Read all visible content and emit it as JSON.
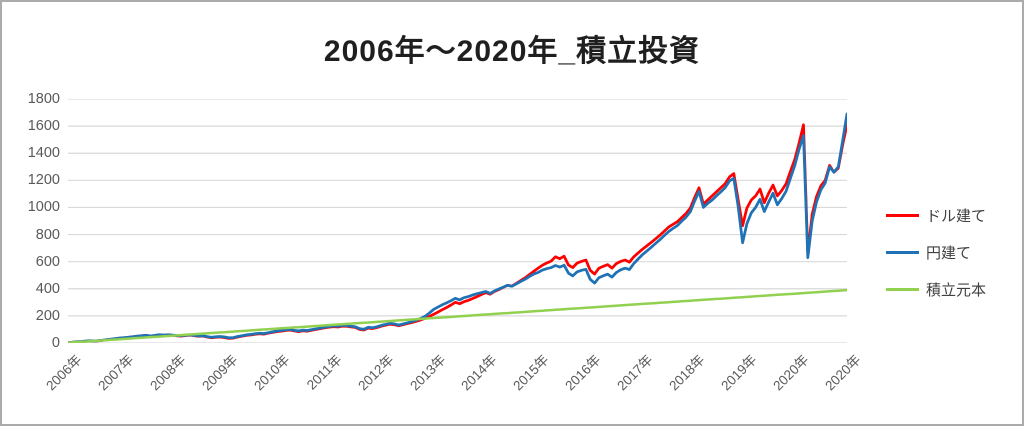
{
  "window": {
    "background": "#ffffff",
    "border_color": "#ababab"
  },
  "colors": {
    "grid": "#d9d9d9",
    "axis_text": "#595959",
    "title_text": "#1f1f1f",
    "legend_text": "#404040"
  },
  "chart_data": {
    "type": "line",
    "title": "2006年～2020年_積立投資",
    "xlabel": "",
    "ylabel": "",
    "ylim": [
      0,
      1800
    ],
    "y_ticks": [
      0,
      200,
      400,
      600,
      800,
      1000,
      1200,
      1400,
      1600,
      1800
    ],
    "grid": "horizontal",
    "legend_position": "right",
    "x_tick_labels": [
      "2006年",
      "2007年",
      "2008年",
      "2009年",
      "2010年",
      "2011年",
      "2012年",
      "2013年",
      "2014年",
      "2015年",
      "2016年",
      "2017年",
      "2018年",
      "2019年",
      "2020年",
      "2020年"
    ],
    "x_resolution": "monthly, Jan 2006 - Dec 2020",
    "series": [
      {
        "name": "ドル建て",
        "color": "#ff0000",
        "values": [
          2,
          5,
          8,
          10,
          13,
          15,
          14,
          17,
          20,
          24,
          28,
          32,
          36,
          39,
          42,
          46,
          50,
          53,
          56,
          51,
          55,
          60,
          57,
          60,
          56,
          53,
          51,
          55,
          58,
          54,
          50,
          52,
          44,
          38,
          42,
          44,
          40,
          34,
          36,
          44,
          50,
          56,
          60,
          64,
          68,
          66,
          72,
          78,
          84,
          88,
          92,
          96,
          89,
          84,
          90,
          87,
          94,
          100,
          106,
          112,
          117,
          121,
          118,
          125,
          123,
          119,
          115,
          100,
          96,
          110,
          106,
          114,
          124,
          131,
          139,
          135,
          127,
          135,
          143,
          151,
          160,
          170,
          182,
          195,
          212,
          228,
          246,
          262,
          280,
          300,
          290,
          305,
          315,
          328,
          342,
          358,
          372,
          360,
          380,
          394,
          410,
          426,
          420,
          440,
          460,
          480,
          504,
          528,
          552,
          574,
          590,
          604,
          636,
          622,
          640,
          575,
          556,
          590,
          602,
          612,
          536,
          508,
          552,
          566,
          578,
          552,
          586,
          602,
          612,
          596,
          636,
          664,
          692,
          716,
          742,
          768,
          795,
          825,
          855,
          875,
          895,
          925,
          955,
          995,
          1075,
          1145,
          1025,
          1055,
          1085,
          1115,
          1145,
          1175,
          1225,
          1250,
          1055,
          865,
          995,
          1055,
          1085,
          1135,
          1035,
          1105,
          1165,
          1085,
          1125,
          1175,
          1265,
          1355,
          1475,
          1610,
          660,
          950,
          1080,
          1160,
          1200,
          1310,
          1260,
          1290,
          1460,
          1610
        ]
      },
      {
        "name": "円建て",
        "color": "#1f72b5",
        "values": [
          2,
          5,
          9,
          11,
          14,
          16,
          15,
          18,
          21,
          25,
          29,
          33,
          37,
          40,
          43,
          47,
          51,
          54,
          57,
          52,
          56,
          61,
          58,
          61,
          58,
          55,
          53,
          57,
          60,
          56,
          52,
          54,
          47,
          42,
          46,
          48,
          44,
          38,
          40,
          48,
          54,
          60,
          64,
          68,
          72,
          70,
          76,
          82,
          89,
          93,
          97,
          101,
          94,
          89,
          95,
          92,
          99,
          105,
          111,
          117,
          122,
          126,
          123,
          130,
          128,
          124,
          120,
          106,
          102,
          116,
          112,
          120,
          130,
          137,
          145,
          141,
          133,
          141,
          149,
          158,
          168,
          180,
          196,
          220,
          248,
          265,
          282,
          296,
          312,
          330,
          318,
          334,
          342,
          354,
          364,
          372,
          380,
          366,
          384,
          398,
          412,
          426,
          418,
          436,
          454,
          470,
          490,
          508,
          520,
          538,
          548,
          556,
          572,
          560,
          574,
          515,
          495,
          525,
          536,
          544,
          470,
          442,
          482,
          496,
          508,
          486,
          520,
          540,
          552,
          542,
          586,
          620,
          652,
          678,
          706,
          734,
          762,
          792,
          822,
          845,
          866,
          898,
          928,
          968,
          1048,
          1118,
          1000,
          1030,
          1055,
          1085,
          1115,
          1145,
          1195,
          1215,
          1005,
          740,
          880,
          960,
          1000,
          1060,
          970,
          1040,
          1105,
          1020,
          1065,
          1120,
          1215,
          1310,
          1430,
          1530,
          630,
          900,
          1040,
          1130,
          1180,
          1300,
          1260,
          1300,
          1490,
          1690
        ]
      },
      {
        "name": "積立元本",
        "color": "#92d050",
        "linear": {
          "from": 2,
          "to": 390,
          "points": 180
        }
      }
    ]
  }
}
